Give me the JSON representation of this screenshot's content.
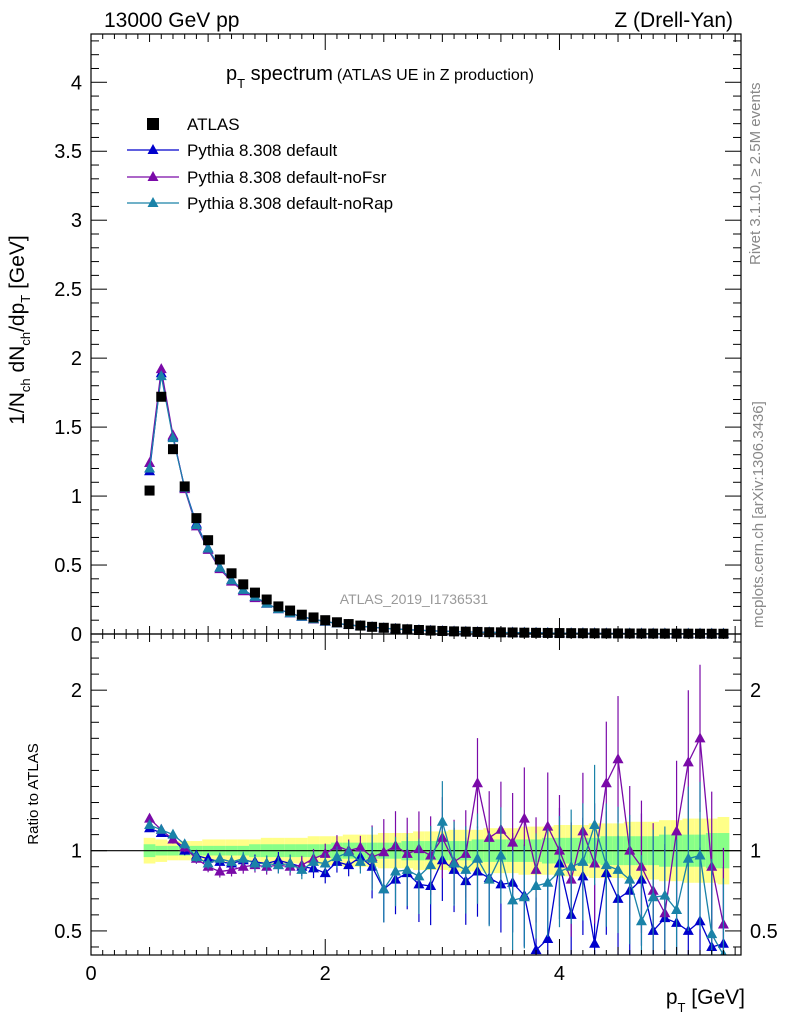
{
  "header": {
    "left": "13000 GeV pp",
    "right": "Z (Drell-Yan)"
  },
  "title": {
    "main": "p",
    "main_sub": "T",
    "main_rest": " spectrum",
    "detail": "(ATLAS UE in Z production)"
  },
  "watermark": "ATLAS_2019_I1736531",
  "side_text": {
    "rivet": "Rivet 3.1.10, ≥ 2.5M events",
    "mcplots": "mcplots.cern.ch [arXiv:1306.3436]"
  },
  "colors": {
    "atlas": "#000000",
    "default": "#0000cc",
    "noFsr": "#7a0aa8",
    "noRap": "#1a82a8",
    "band_outer": "#ffff88",
    "band_inner": "#88ff88"
  },
  "chart_data": [
    {
      "type": "scatter",
      "panel": "main",
      "ylabel": "1/N_ch dN_ch/dp_T [GeV]",
      "ylim": [
        0,
        4.35
      ],
      "yticks": [
        "0",
        "0.5",
        "1",
        "1.5",
        "2",
        "2.5",
        "3",
        "3.5",
        "4"
      ],
      "legend_position": "top-left",
      "x": [
        0.5,
        0.6,
        0.7,
        0.8,
        0.9,
        1.0,
        1.1,
        1.2,
        1.3,
        1.4,
        1.5,
        1.6,
        1.7,
        1.8,
        1.9,
        2.0,
        2.1,
        2.2,
        2.3,
        2.4,
        2.5,
        2.6,
        2.7,
        2.8,
        2.9,
        3.0,
        3.1,
        3.2,
        3.3,
        3.4,
        3.5,
        3.6,
        3.7,
        3.8,
        3.9,
        4.0,
        4.1,
        4.2,
        4.3,
        4.4,
        4.5,
        4.6,
        4.7,
        4.8,
        4.9,
        5.0,
        5.1,
        5.2,
        5.3,
        5.4
      ],
      "series": [
        {
          "name": "ATLAS",
          "marker": "square",
          "values": [
            1.04,
            1.72,
            1.34,
            1.07,
            0.84,
            0.68,
            0.54,
            0.44,
            0.36,
            0.3,
            0.25,
            0.2,
            0.17,
            0.14,
            0.12,
            0.1,
            0.085,
            0.072,
            0.061,
            0.052,
            0.045,
            0.039,
            0.034,
            0.029,
            0.025,
            0.022,
            0.019,
            0.017,
            0.015,
            0.013,
            0.012,
            0.011,
            0.0095,
            0.0085,
            0.0076,
            0.0068,
            0.0061,
            0.0055,
            0.005,
            0.0045,
            0.0041,
            0.0037,
            0.0034,
            0.0031,
            0.0028,
            0.0026,
            0.0024,
            0.0022,
            0.002,
            0.0018
          ]
        },
        {
          "name": "Pythia 8.308 default",
          "marker": "triangle",
          "values": [
            1.18,
            1.89,
            1.43,
            1.06,
            0.8,
            0.62,
            0.48,
            0.39,
            0.32,
            0.27,
            0.22,
            0.18,
            0.15,
            0.125,
            0.108,
            0.09,
            0.077,
            0.066,
            0.057,
            0.049,
            0.042,
            0.036,
            0.031,
            0.027,
            0.023,
            0.02,
            0.017,
            0.015,
            0.013,
            0.012,
            0.011,
            0.01,
            0.009,
            0.008,
            0.007,
            0.006,
            0.0055,
            0.005,
            0.0045,
            0.004,
            0.0036,
            0.0033,
            0.003,
            0.0027,
            0.0025,
            0.0023,
            0.0021,
            0.0019,
            0.0017,
            0.0016
          ]
        },
        {
          "name": "Pythia 8.308 default-noFsr",
          "marker": "triangle",
          "values": [
            1.24,
            1.92,
            1.44,
            1.05,
            0.78,
            0.61,
            0.47,
            0.38,
            0.31,
            0.26,
            0.22,
            0.18,
            0.15,
            0.125,
            0.105,
            0.09,
            0.077,
            0.066,
            0.057,
            0.049,
            0.042,
            0.036,
            0.032,
            0.027,
            0.024,
            0.021,
            0.018,
            0.016,
            0.014,
            0.012,
            0.011,
            0.01,
            0.009,
            0.008,
            0.007,
            0.0062,
            0.0056,
            0.005,
            0.0046,
            0.0042,
            0.0038,
            0.0034,
            0.0031,
            0.0028,
            0.0026,
            0.0024,
            0.0022,
            0.002,
            0.0018,
            0.0016
          ]
        },
        {
          "name": "Pythia 8.308 default-noRap",
          "marker": "triangle",
          "values": [
            1.2,
            1.87,
            1.42,
            1.06,
            0.79,
            0.62,
            0.48,
            0.39,
            0.32,
            0.27,
            0.22,
            0.18,
            0.15,
            0.125,
            0.107,
            0.09,
            0.077,
            0.066,
            0.057,
            0.049,
            0.042,
            0.036,
            0.031,
            0.027,
            0.023,
            0.02,
            0.017,
            0.015,
            0.013,
            0.012,
            0.011,
            0.01,
            0.009,
            0.008,
            0.007,
            0.006,
            0.0055,
            0.005,
            0.0045,
            0.004,
            0.0036,
            0.0033,
            0.003,
            0.0027,
            0.0025,
            0.0023,
            0.0021,
            0.0019,
            0.0017,
            0.0016
          ]
        }
      ]
    },
    {
      "type": "line",
      "panel": "ratio",
      "xlabel": "p_T [GeV]",
      "ylabel": "Ratio to ATLAS",
      "xlim": [
        0,
        5.55
      ],
      "ylim": [
        0.35,
        2.35
      ],
      "xticks": [
        "0",
        "2",
        "4"
      ],
      "yticks": [
        "0.5",
        "1",
        "2"
      ],
      "x": [
        0.5,
        0.6,
        0.7,
        0.8,
        0.9,
        1.0,
        1.1,
        1.2,
        1.3,
        1.4,
        1.5,
        1.6,
        1.7,
        1.8,
        1.9,
        2.0,
        2.1,
        2.2,
        2.3,
        2.4,
        2.5,
        2.6,
        2.7,
        2.8,
        2.9,
        3.0,
        3.1,
        3.2,
        3.3,
        3.4,
        3.5,
        3.6,
        3.7,
        3.8,
        3.9,
        4.0,
        4.1,
        4.2,
        4.3,
        4.4,
        4.5,
        4.6,
        4.7,
        4.8,
        4.9,
        5.0,
        5.1,
        5.2,
        5.3,
        5.4
      ],
      "band_outer_halfwidth": [
        0.08,
        0.07,
        0.06,
        0.06,
        0.06,
        0.07,
        0.07,
        0.07,
        0.07,
        0.07,
        0.08,
        0.08,
        0.08,
        0.08,
        0.09,
        0.09,
        0.09,
        0.1,
        0.1,
        0.1,
        0.11,
        0.11,
        0.11,
        0.12,
        0.12,
        0.12,
        0.13,
        0.13,
        0.13,
        0.14,
        0.14,
        0.14,
        0.15,
        0.15,
        0.15,
        0.16,
        0.16,
        0.16,
        0.17,
        0.17,
        0.17,
        0.18,
        0.18,
        0.18,
        0.19,
        0.19,
        0.2,
        0.2,
        0.2,
        0.21
      ],
      "band_inner_halfwidth": [
        0.04,
        0.03,
        0.03,
        0.03,
        0.03,
        0.03,
        0.03,
        0.03,
        0.03,
        0.04,
        0.04,
        0.04,
        0.04,
        0.04,
        0.04,
        0.04,
        0.05,
        0.05,
        0.05,
        0.05,
        0.05,
        0.05,
        0.06,
        0.06,
        0.06,
        0.06,
        0.06,
        0.06,
        0.07,
        0.07,
        0.07,
        0.07,
        0.07,
        0.07,
        0.08,
        0.08,
        0.08,
        0.08,
        0.08,
        0.09,
        0.09,
        0.09,
        0.09,
        0.09,
        0.1,
        0.1,
        0.1,
        0.1,
        0.11,
        0.11
      ],
      "series": [
        {
          "name": "Pythia 8.308 default",
          "values": [
            1.14,
            1.11,
            1.07,
            1.0,
            0.97,
            0.95,
            0.93,
            0.92,
            0.94,
            0.93,
            0.92,
            0.94,
            0.92,
            0.9,
            0.89,
            0.86,
            0.93,
            0.91,
            0.96,
            0.9,
            0.76,
            0.82,
            0.86,
            0.79,
            0.78,
            0.94,
            0.88,
            0.81,
            0.87,
            0.83,
            0.79,
            0.8,
            0.72,
            0.38,
            0.45,
            0.92,
            0.6,
            0.84,
            0.42,
            0.86,
            0.7,
            0.75,
            0.82,
            0.5,
            0.58,
            0.55,
            0.5,
            0.56,
            0.4,
            0.42
          ]
        },
        {
          "name": "Pythia 8.308 default-noFsr",
          "values": [
            1.2,
            1.13,
            1.07,
            1.02,
            0.95,
            0.9,
            0.87,
            0.88,
            0.9,
            0.91,
            0.9,
            0.91,
            0.9,
            0.91,
            0.95,
            0.98,
            1.03,
            1.0,
            1.02,
            0.96,
            0.99,
            1.03,
            0.98,
            1.01,
            0.97,
            1.08,
            0.93,
            0.98,
            1.42,
            1.08,
            1.13,
            1.05,
            1.2,
            0.88,
            1.15,
            1.0,
            0.82,
            1.12,
            0.92,
            1.42,
            1.57,
            1.0,
            0.9,
            0.75,
            0.61,
            1.12,
            1.55,
            1.7,
            0.9,
            0.54
          ]
        },
        {
          "name": "Pythia 8.308 default-noRap",
          "values": [
            1.16,
            1.13,
            1.1,
            1.04,
            0.96,
            0.92,
            0.95,
            0.93,
            0.95,
            0.92,
            0.92,
            0.91,
            0.92,
            0.88,
            0.93,
            0.92,
            0.96,
            0.99,
            0.93,
            0.95,
            0.76,
            0.87,
            0.88,
            0.84,
            0.91,
            1.18,
            0.92,
            0.88,
            0.95,
            0.82,
            0.97,
            0.69,
            0.71,
            0.78,
            0.8,
            0.87,
            0.9,
            0.93,
            1.16,
            0.91,
            0.88,
            0.82,
            0.56,
            0.71,
            0.72,
            0.63,
            0.95,
            0.97,
            0.48,
            0.35
          ]
        }
      ]
    }
  ]
}
